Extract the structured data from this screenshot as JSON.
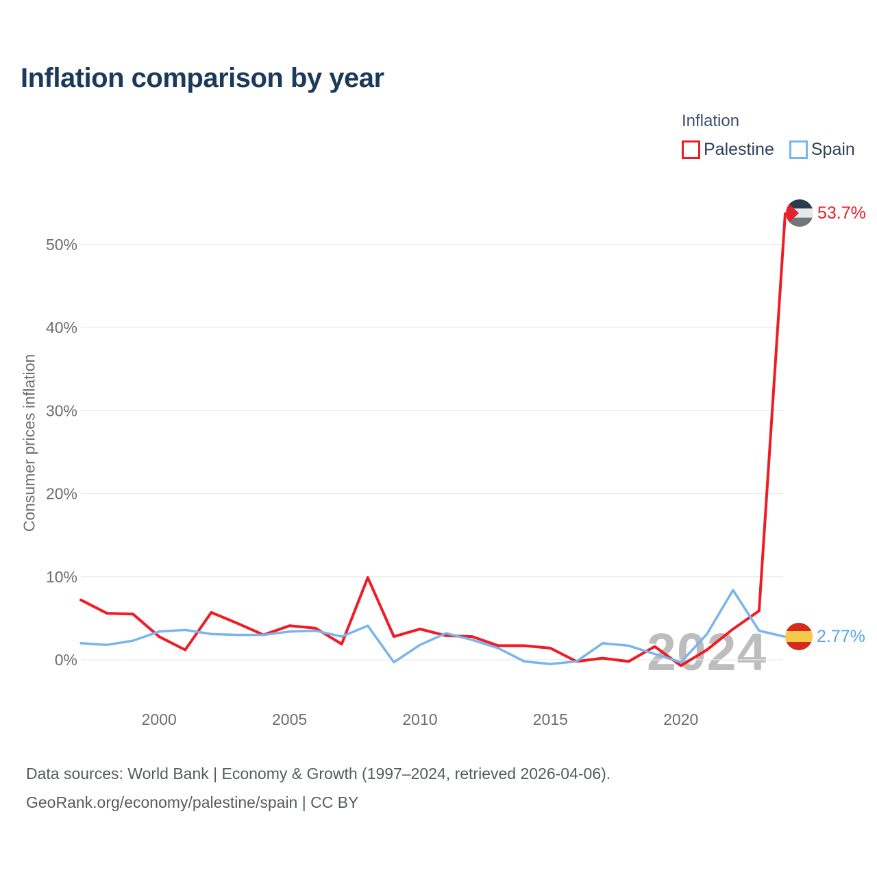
{
  "header": {
    "title": "Inflation comparison by year"
  },
  "legend": {
    "title": "Inflation",
    "items": [
      {
        "label": "Palestine",
        "color": "#ee1c25"
      },
      {
        "label": "Spain",
        "color": "#78b5ec"
      }
    ]
  },
  "footer": {
    "line1": "Data sources: World Bank | Economy & Growth (1997–2024, retrieved 2026-04-06).",
    "line2": "GeoRank.org/economy/palestine/spain | CC BY"
  },
  "chart_data": {
    "type": "line",
    "title": "Inflation comparison by year",
    "xlabel": "",
    "ylabel": "Consumer prices inflation",
    "x": [
      1997,
      1998,
      1999,
      2000,
      2001,
      2002,
      2003,
      2004,
      2005,
      2006,
      2007,
      2008,
      2009,
      2010,
      2011,
      2012,
      2013,
      2014,
      2015,
      2016,
      2017,
      2018,
      2019,
      2020,
      2021,
      2022,
      2023,
      2024
    ],
    "series": [
      {
        "name": "Palestine",
        "color": "#ee1c25",
        "width": 4,
        "values": [
          7.2,
          5.6,
          5.5,
          2.8,
          1.2,
          5.7,
          4.4,
          3.0,
          4.1,
          3.8,
          1.9,
          9.9,
          2.8,
          3.7,
          2.9,
          2.8,
          1.7,
          1.7,
          1.4,
          -0.2,
          0.2,
          -0.2,
          1.6,
          -0.7,
          1.2,
          3.7,
          5.9,
          53.7
        ]
      },
      {
        "name": "Spain",
        "color": "#78b5ec",
        "width": 3.5,
        "values": [
          2.0,
          1.8,
          2.3,
          3.4,
          3.6,
          3.1,
          3.0,
          3.0,
          3.4,
          3.5,
          2.8,
          4.1,
          -0.3,
          1.8,
          3.2,
          2.4,
          1.4,
          -0.2,
          -0.5,
          -0.2,
          2.0,
          1.7,
          0.7,
          -0.3,
          3.1,
          8.4,
          3.5,
          2.77
        ]
      }
    ],
    "yticks": [
      0,
      10,
      20,
      30,
      40,
      50
    ],
    "ytick_suffix": "%",
    "xticks": [
      2000,
      2005,
      2010,
      2015,
      2020
    ],
    "ylim": [
      -2,
      56
    ],
    "grid": "horizontal-only",
    "legend_position": "top-right",
    "watermark": "2024",
    "end_labels": [
      {
        "series": "Palestine",
        "text": "53.7%",
        "color": "#ee1c25",
        "icon": "palestine-flag-icon"
      },
      {
        "series": "Spain",
        "text": "2.77%",
        "color": "#58a4e6",
        "icon": "spain-flag-icon"
      }
    ]
  },
  "colors": {
    "title_text": "#1b3a5a",
    "axis_text": "#6e6e6e",
    "gridline": "#eaeaea",
    "watermark": "#bdbdbd",
    "palestine_red": "#ee1c25",
    "spain_blue": "#78b5ec",
    "footer_text": "#565b60"
  }
}
